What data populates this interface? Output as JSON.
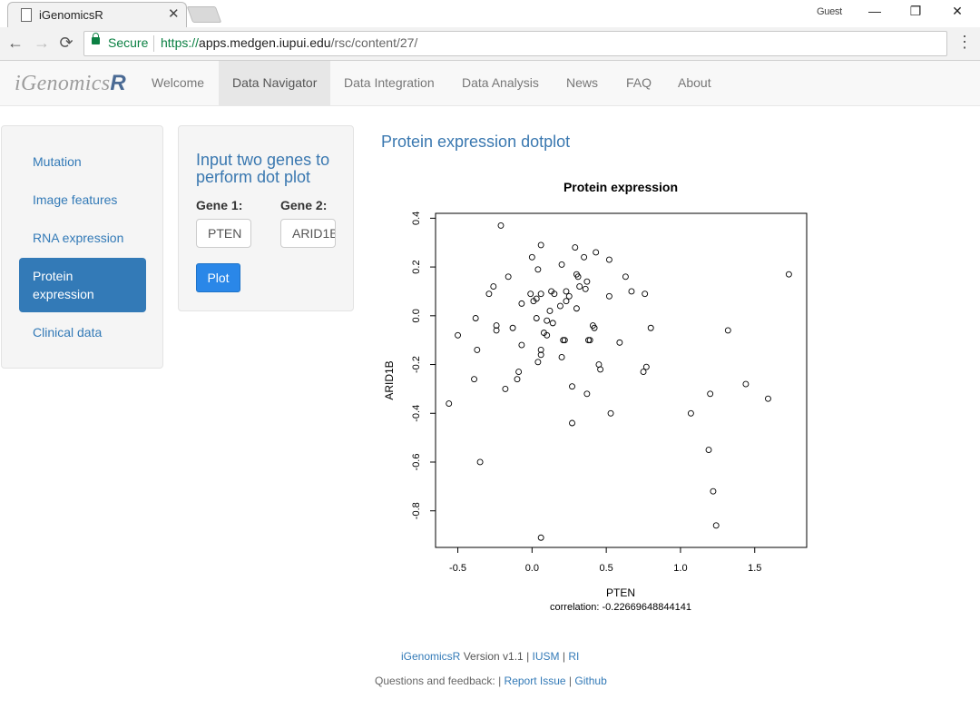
{
  "browser": {
    "tab_title": "iGenomicsR",
    "tab_close": "✕",
    "user": "Guest",
    "secure_label": "Secure",
    "url_scheme": "https://",
    "url_host": "apps.medgen.iupui.edu",
    "url_path": "/rsc/content/27/",
    "controls": {
      "back": "←",
      "forward": "→",
      "reload": "⟳",
      "minimize": "—",
      "restore": "❐",
      "close": "✕",
      "menu": "⋮"
    }
  },
  "navbar": {
    "brand_text": "iGenomics",
    "brand_r": "R",
    "items": [
      {
        "label": "Welcome"
      },
      {
        "label": "Data Navigator"
      },
      {
        "label": "Data Integration"
      },
      {
        "label": "Data Analysis"
      },
      {
        "label": "News"
      },
      {
        "label": "FAQ"
      },
      {
        "label": "About"
      }
    ],
    "active": "Data Navigator"
  },
  "sidebar": {
    "items": [
      {
        "label": "Mutation"
      },
      {
        "label": "Image features"
      },
      {
        "label": "RNA expression"
      },
      {
        "label": "Protein expression"
      },
      {
        "label": "Clinical data"
      }
    ],
    "active": "Protein expression"
  },
  "panel": {
    "title": "Input two genes to perform dot plot",
    "gene1_label": "Gene 1:",
    "gene2_label": "Gene 2:",
    "gene1_value": "PTEN",
    "gene2_value": "ARID1B",
    "plot_button": "Plot"
  },
  "main": {
    "title": "Protein expression dotplot"
  },
  "chart_data": {
    "type": "scatter",
    "title": "Protein expression",
    "xlabel": "PTEN",
    "ylabel": "ARID1B",
    "subtitle": "correlation: -0.22669648844141",
    "xlim": [
      -0.65,
      1.85
    ],
    "ylim": [
      -0.95,
      0.42
    ],
    "x_ticks": [
      -0.5,
      0.0,
      0.5,
      1.0,
      1.5
    ],
    "x_tick_labels": [
      "-0.5",
      "0.0",
      "0.5",
      "1.0",
      "1.5"
    ],
    "y_ticks": [
      -0.8,
      -0.6,
      -0.4,
      -0.2,
      0.0,
      0.2,
      0.4
    ],
    "y_tick_labels": [
      "-0.8",
      "-0.6",
      "-0.4",
      "-0.2",
      "0.0",
      "0.2",
      "0.4"
    ],
    "grid": false,
    "legend": "none",
    "points": [
      [
        -0.21,
        0.37
      ],
      [
        -0.56,
        -0.36
      ],
      [
        -0.5,
        -0.08
      ],
      [
        -0.39,
        -0.26
      ],
      [
        -0.38,
        -0.01
      ],
      [
        -0.37,
        -0.14
      ],
      [
        -0.35,
        -0.6
      ],
      [
        -0.29,
        0.09
      ],
      [
        -0.26,
        0.12
      ],
      [
        -0.24,
        -0.04
      ],
      [
        -0.24,
        -0.06
      ],
      [
        -0.18,
        -0.3
      ],
      [
        -0.16,
        0.16
      ],
      [
        -0.13,
        -0.05
      ],
      [
        -0.1,
        -0.26
      ],
      [
        -0.09,
        -0.23
      ],
      [
        -0.07,
        -0.12
      ],
      [
        -0.07,
        0.05
      ],
      [
        -0.01,
        0.09
      ],
      [
        0.0,
        0.24
      ],
      [
        0.01,
        0.06
      ],
      [
        0.03,
        0.07
      ],
      [
        0.03,
        -0.01
      ],
      [
        0.04,
        -0.19
      ],
      [
        0.04,
        0.19
      ],
      [
        0.06,
        0.29
      ],
      [
        0.06,
        -0.14
      ],
      [
        0.06,
        -0.16
      ],
      [
        0.06,
        0.09
      ],
      [
        0.08,
        -0.07
      ],
      [
        0.1,
        -0.02
      ],
      [
        0.1,
        -0.08
      ],
      [
        0.12,
        0.02
      ],
      [
        0.13,
        0.1
      ],
      [
        0.14,
        -0.03
      ],
      [
        0.15,
        0.09
      ],
      [
        0.19,
        0.04
      ],
      [
        0.2,
        0.21
      ],
      [
        0.2,
        -0.17
      ],
      [
        0.21,
        -0.1
      ],
      [
        0.22,
        -0.1
      ],
      [
        0.23,
        0.06
      ],
      [
        0.23,
        0.1
      ],
      [
        0.25,
        0.08
      ],
      [
        0.27,
        -0.44
      ],
      [
        0.27,
        -0.29
      ],
      [
        0.29,
        0.28
      ],
      [
        0.3,
        0.03
      ],
      [
        0.3,
        0.17
      ],
      [
        0.31,
        0.16
      ],
      [
        0.32,
        0.12
      ],
      [
        0.35,
        0.24
      ],
      [
        0.36,
        0.11
      ],
      [
        0.37,
        0.14
      ],
      [
        0.37,
        -0.32
      ],
      [
        0.38,
        -0.1
      ],
      [
        0.39,
        -0.1
      ],
      [
        0.41,
        -0.04
      ],
      [
        0.42,
        -0.05
      ],
      [
        0.43,
        0.26
      ],
      [
        0.45,
        -0.2
      ],
      [
        0.46,
        -0.22
      ],
      [
        0.52,
        0.08
      ],
      [
        0.52,
        0.23
      ],
      [
        0.53,
        -0.4
      ],
      [
        0.59,
        -0.11
      ],
      [
        0.63,
        0.16
      ],
      [
        0.67,
        0.1
      ],
      [
        0.75,
        -0.23
      ],
      [
        0.76,
        0.09
      ],
      [
        0.77,
        -0.21
      ],
      [
        0.8,
        -0.05
      ],
      [
        0.06,
        -0.91
      ],
      [
        1.07,
        -0.4
      ],
      [
        1.19,
        -0.55
      ],
      [
        1.2,
        -0.32
      ],
      [
        1.22,
        -0.72
      ],
      [
        1.24,
        -0.86
      ],
      [
        1.32,
        -0.06
      ],
      [
        1.44,
        -0.28
      ],
      [
        1.59,
        -0.34
      ],
      [
        1.73,
        0.17
      ]
    ]
  },
  "footer": {
    "app": "iGenomicsR",
    "version": " Version v1.1 | ",
    "iusm": "IUSM",
    "bar": " | ",
    "ri": "RI",
    "feedback": "Questions and feedback: | ",
    "report": "Report Issue",
    "bar2": " | ",
    "github": "Github"
  }
}
